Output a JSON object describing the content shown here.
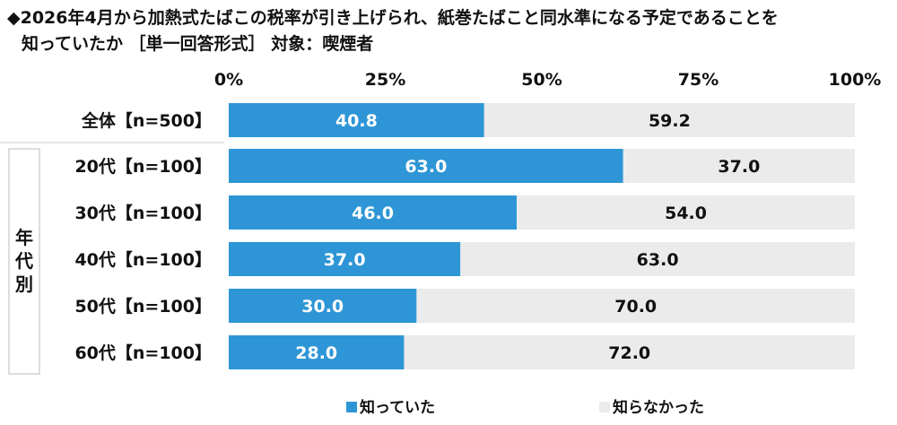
{
  "title": {
    "line1": "◆2026年4月から加熱式たばこの税率が引き上げられ、紙巻たばこと同水準になる予定であることを",
    "line2": "知っていたか ［単一回答形式］ 対象：喫煙者"
  },
  "group_label": "年代別",
  "colors": {
    "known": "#2e96d6",
    "unknown": "#ebebeb",
    "label_known": "#ffffff",
    "label_unknown": "#111111"
  },
  "chart_data": {
    "type": "bar",
    "orientation": "horizontal",
    "stacked": true,
    "title": "",
    "xlabel": "",
    "ylabel": "",
    "xlim": [
      0,
      100
    ],
    "x_ticks": [
      "0%",
      "25%",
      "50%",
      "75%",
      "100%"
    ],
    "categories": [
      "全体【n=500】",
      "20代【n=100】",
      "30代【n=100】",
      "40代【n=100】",
      "50代【n=100】",
      "60代【n=100】"
    ],
    "series": [
      {
        "name": "知っていた",
        "values": [
          40.8,
          63.0,
          46.0,
          37.0,
          30.0,
          28.0
        ]
      },
      {
        "name": "知らなかった",
        "values": [
          59.2,
          37.0,
          54.0,
          63.0,
          70.0,
          72.0
        ]
      }
    ],
    "legend_position": "bottom",
    "grid": false
  }
}
